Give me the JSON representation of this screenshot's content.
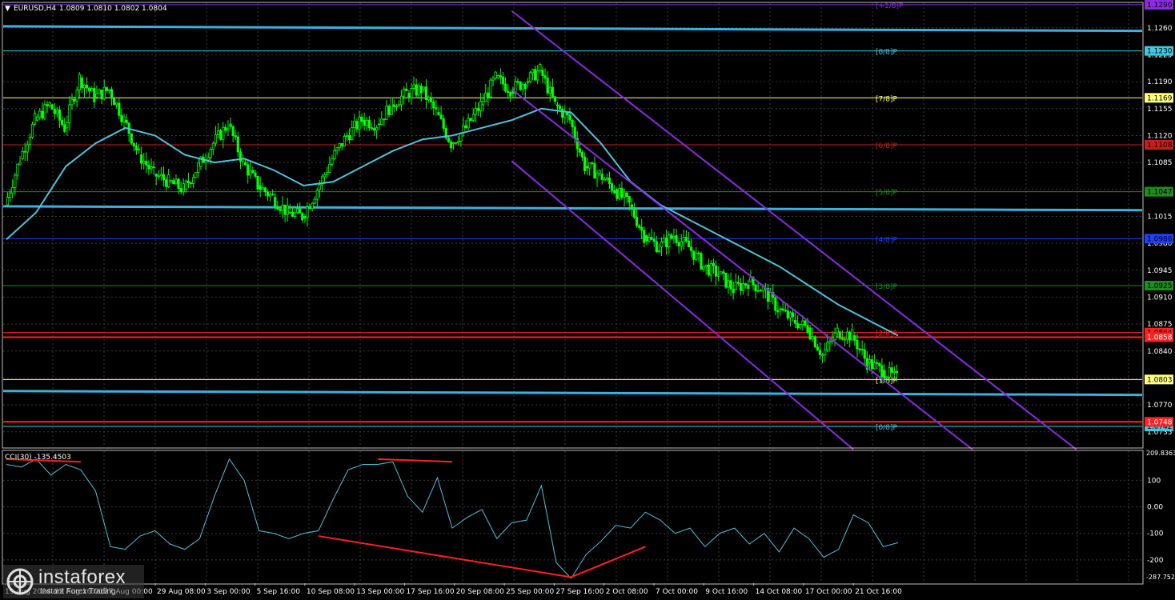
{
  "header": {
    "symbol_label": "EURUSD,H4",
    "ohlc": "1.0809 1.0810 1.0802 1.0804"
  },
  "indicator": {
    "label": "CCI(30) -135.4503",
    "side_top": "209.8363",
    "side_bottom": "-287.7529"
  },
  "watermark": {
    "brand": "instaforex",
    "tagline": "Instant Forex Trading"
  },
  "colors": {
    "background": "#000000",
    "grid": "#3a3a3a",
    "candles": "#00ff00",
    "moving_average": "#4fc3dc",
    "channel": "#8a2be2",
    "cci_line": "#4fc3dc",
    "divergence": "#ff2020",
    "axis_text": "#ffffff"
  },
  "chart_data": [
    {
      "type": "candlestick",
      "title": "EURUSD,H4",
      "ylim": [
        1.0715,
        1.1292
      ],
      "y_ticks": [
        "1.1260",
        "1.1225",
        "1.1190",
        "1.1155",
        "1.1120",
        "1.1085",
        "1.1050",
        "1.1015",
        "1.0980",
        "1.0945",
        "1.0910",
        "1.0875",
        "1.0840",
        "1.0805",
        "1.0770",
        "1.0735"
      ],
      "x_ticks": [
        "29 Aug 08:00",
        "3 Sep 00:00",
        "5 Sep 16:00",
        "10 Sep 08:00",
        "13 Sep 00:00",
        "17 Sep 16:00",
        "20 Sep 08:00",
        "25 Sep 00:00",
        "27 Sep 16:00",
        "2 Oct 08:00",
        "7 Oct 00:00",
        "9 Oct 16:00",
        "14 Oct 08:00",
        "17 Oct 00:00",
        "21 Oct 16:00"
      ],
      "x_ticks_obscured": [
        "19 Aug 2024",
        "22 Aug 16:00",
        "27 Aug 00:00"
      ],
      "close_path": [
        [
          0,
          1.103
        ],
        [
          1,
          1.109
        ],
        [
          2,
          1.114
        ],
        [
          3,
          1.116
        ],
        [
          4,
          1.113
        ],
        [
          5,
          1.1195
        ],
        [
          6,
          1.117
        ],
        [
          7,
          1.118
        ],
        [
          8,
          1.114
        ],
        [
          9,
          1.1095
        ],
        [
          10,
          1.107
        ],
        [
          11,
          1.106
        ],
        [
          12,
          1.105
        ],
        [
          13,
          1.108
        ],
        [
          14,
          1.111
        ],
        [
          15,
          1.1135
        ],
        [
          16,
          1.1085
        ],
        [
          17,
          1.1055
        ],
        [
          18,
          1.104
        ],
        [
          19,
          1.102
        ],
        [
          20,
          1.1015
        ],
        [
          21,
          1.105
        ],
        [
          22,
          1.109
        ],
        [
          23,
          1.112
        ],
        [
          24,
          1.114
        ],
        [
          25,
          1.1135
        ],
        [
          26,
          1.116
        ],
        [
          27,
          1.1175
        ],
        [
          28,
          1.118
        ],
        [
          29,
          1.115
        ],
        [
          30,
          1.111
        ],
        [
          31,
          1.113
        ],
        [
          32,
          1.116
        ],
        [
          33,
          1.1195
        ],
        [
          34,
          1.118
        ],
        [
          35,
          1.119
        ],
        [
          36,
          1.1205
        ],
        [
          37,
          1.116
        ],
        [
          38,
          1.114
        ],
        [
          39,
          1.108
        ],
        [
          40,
          1.107
        ],
        [
          41,
          1.105
        ],
        [
          42,
          1.103
        ],
        [
          43,
          1.099
        ],
        [
          44,
          1.0975
        ],
        [
          45,
          1.099
        ],
        [
          46,
          1.0975
        ],
        [
          47,
          1.095
        ],
        [
          48,
          1.094
        ],
        [
          49,
          1.092
        ],
        [
          50,
          1.093
        ],
        [
          51,
          1.092
        ],
        [
          52,
          1.0895
        ],
        [
          53,
          1.088
        ],
        [
          54,
          1.087
        ],
        [
          55,
          1.0835
        ],
        [
          56,
          1.0865
        ],
        [
          57,
          1.086
        ],
        [
          58,
          1.0825
        ],
        [
          59,
          1.0815
        ],
        [
          60,
          1.0804
        ]
      ],
      "moving_average": [
        [
          0,
          1.0985
        ],
        [
          2,
          1.102
        ],
        [
          4,
          1.108
        ],
        [
          6,
          1.111
        ],
        [
          8,
          1.113
        ],
        [
          10,
          1.112
        ],
        [
          12,
          1.1095
        ],
        [
          14,
          1.1085
        ],
        [
          16,
          1.109
        ],
        [
          18,
          1.1075
        ],
        [
          20,
          1.1055
        ],
        [
          22,
          1.106
        ],
        [
          24,
          1.108
        ],
        [
          26,
          1.11
        ],
        [
          28,
          1.1115
        ],
        [
          30,
          1.112
        ],
        [
          32,
          1.113
        ],
        [
          34,
          1.114
        ],
        [
          36,
          1.1155
        ],
        [
          38,
          1.115
        ],
        [
          40,
          1.111
        ],
        [
          42,
          1.106
        ],
        [
          44,
          1.103
        ],
        [
          46,
          1.101
        ],
        [
          48,
          1.099
        ],
        [
          50,
          1.097
        ],
        [
          52,
          1.095
        ],
        [
          54,
          1.0925
        ],
        [
          56,
          1.09
        ],
        [
          58,
          1.088
        ],
        [
          60,
          1.086
        ]
      ],
      "horizontal_levels": [
        {
          "label": "[+1/8]P",
          "value": "1.1290",
          "color": "#8a2be2"
        },
        {
          "label": "[8/8]P",
          "value": "1.1230",
          "color": "#40c8e0"
        },
        {
          "label": "[7/8]P",
          "value": "1.1169",
          "color": "#ffff80"
        },
        {
          "label": "[6/8]P",
          "value": "1.1108",
          "color": "#c81e1e"
        },
        {
          "label": "[5/8]P",
          "value": "1.1047",
          "color": "#1e8c1e"
        },
        {
          "label": "[4/8]P",
          "value": "1.0986",
          "color": "#2040ff"
        },
        {
          "label": "[3/8]P",
          "value": "1.0925",
          "color": "#1e8c1e"
        },
        {
          "label": "[2/8]P",
          "value": "1.0864",
          "color": "#ff2020"
        },
        {
          "label": "[1/8]P",
          "value": "1.0803",
          "color": "#ffff80"
        },
        {
          "label": "[0/8]P",
          "value": "1.0742",
          "color": "#40c8e0"
        }
      ],
      "extra_levels": [
        {
          "value": "1.0858",
          "color": "#ff2020"
        },
        {
          "value": "1.0748",
          "color": "#ff2020"
        }
      ],
      "trend_lines": [
        {
          "from": [
            0,
            1.1262
          ],
          "to": [
            60,
            1.1256
          ]
        },
        {
          "from": [
            0,
            1.1028
          ],
          "to": [
            60,
            1.1023
          ]
        },
        {
          "from": [
            0,
            1.0788
          ],
          "to": [
            60,
            1.0783
          ]
        }
      ],
      "channel_lines": [
        {
          "from": [
            34,
            1.1282
          ],
          "to": [
            72,
            1.0712
          ]
        },
        {
          "from": [
            34,
            1.118
          ],
          "to": [
            65,
            1.0712
          ]
        },
        {
          "from": [
            34,
            1.1087
          ],
          "to": [
            57,
            1.0712
          ]
        }
      ]
    },
    {
      "type": "line",
      "title": "CCI(30) -135.4503",
      "ylim": [
        -287.7529,
        209.8363
      ],
      "y_ticks": [
        "100",
        "0.00",
        "-100",
        "-200"
      ],
      "x": [
        0,
        1,
        2,
        3,
        4,
        5,
        6,
        7,
        8,
        9,
        10,
        11,
        12,
        13,
        14,
        15,
        16,
        17,
        18,
        19,
        20,
        21,
        22,
        23,
        24,
        25,
        26,
        27,
        28,
        29,
        30,
        31,
        32,
        33,
        34,
        35,
        36,
        37,
        38,
        39,
        40,
        41,
        42,
        43,
        44,
        45,
        46,
        47,
        48,
        49,
        50,
        51,
        52,
        53,
        54,
        55,
        56,
        57,
        58,
        59,
        60
      ],
      "values": [
        160,
        150,
        180,
        120,
        160,
        140,
        60,
        -150,
        -160,
        -110,
        -90,
        -140,
        -160,
        -120,
        40,
        180,
        100,
        -90,
        -100,
        -120,
        -100,
        -90,
        30,
        140,
        160,
        160,
        170,
        40,
        -20,
        110,
        -80,
        -40,
        -10,
        -120,
        -60,
        -50,
        80,
        -210,
        -270,
        -180,
        -130,
        -70,
        -80,
        -20,
        -50,
        -100,
        -80,
        -150,
        -100,
        -80,
        -140,
        -100,
        -170,
        -80,
        -120,
        -190,
        -160,
        -30,
        -60,
        -150,
        -135
      ],
      "divergence_lines": [
        {
          "from": [
            0,
            180
          ],
          "to": [
            5,
            170
          ]
        },
        {
          "from": [
            25,
            180
          ],
          "to": [
            30,
            170
          ]
        },
        {
          "from": [
            21,
            -110
          ],
          "to": [
            38,
            -265
          ]
        },
        {
          "from": [
            38,
            -265
          ],
          "to": [
            43,
            -150
          ]
        }
      ]
    }
  ]
}
